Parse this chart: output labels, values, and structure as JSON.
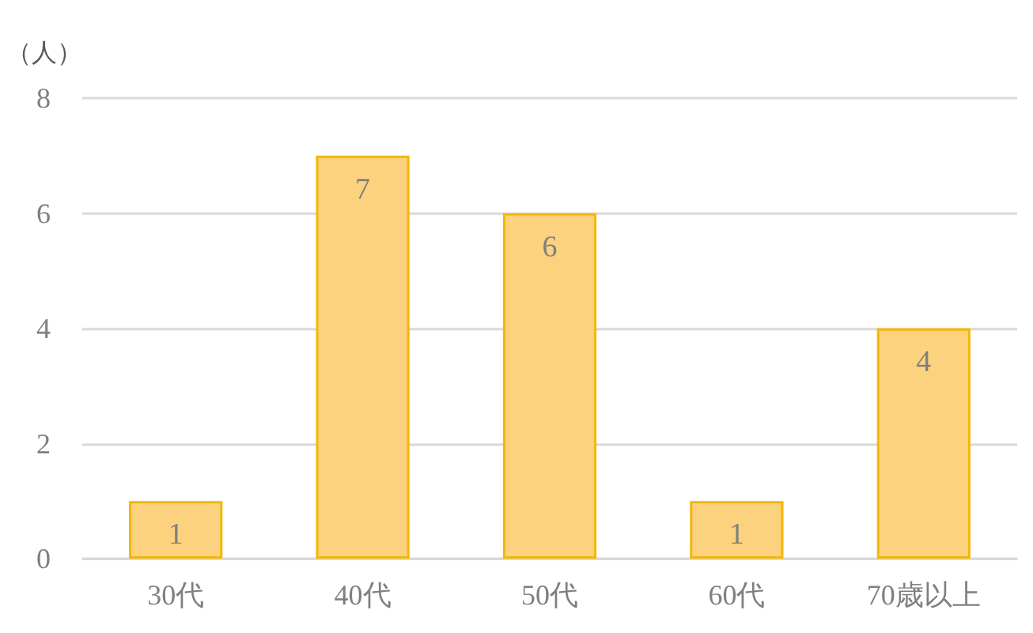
{
  "chart_data": {
    "type": "bar",
    "ylabel": "（人）",
    "categories": [
      "30代",
      "40代",
      "50代",
      "60代",
      "70歳以上"
    ],
    "values": [
      1,
      7,
      6,
      1,
      4
    ],
    "color": "#fdd27e",
    "ylim": [
      0,
      8
    ],
    "yticks": [
      0,
      2,
      4,
      6,
      8
    ],
    "grid": "y",
    "data_labels": true
  }
}
